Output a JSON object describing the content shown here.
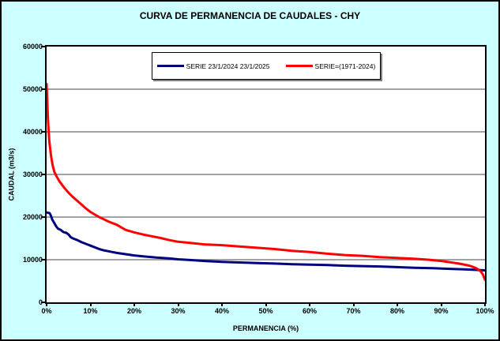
{
  "title": "CURVA DE PERMANENCIA DE CAUDALES - CHY",
  "colors": {
    "background": "#CCFFFF",
    "plot_background": "#FFFFFF",
    "gridline": "#848484",
    "series_blue": "#000080",
    "series_red": "#FF0000",
    "border": "#000000",
    "legend_shadow": "#808080"
  },
  "chart_data": {
    "type": "line",
    "title": "CURVA DE PERMANENCIA DE CAUDALES - CHY",
    "xlabel": "PERMANENCIA (%)",
    "ylabel": "CAUDAL (m3/s)",
    "xlim": [
      0,
      100
    ],
    "ylim": [
      0,
      60000
    ],
    "x_ticks": [
      "0%",
      "10%",
      "20%",
      "30%",
      "40%",
      "50%",
      "60%",
      "70%",
      "80%",
      "90%",
      "100%"
    ],
    "y_ticks": [
      0,
      10000,
      20000,
      30000,
      40000,
      50000,
      60000
    ],
    "grid": "horizontal",
    "legend_position": "top-center-inside",
    "series": [
      {
        "name": "SERIE 23/1/2024 23/1/2025",
        "color": "#000080",
        "points": [
          [
            0,
            21100
          ],
          [
            0.7,
            20900
          ],
          [
            1.0,
            20300
          ],
          [
            1.3,
            19400
          ],
          [
            1.7,
            18700
          ],
          [
            2.2,
            17800
          ],
          [
            2.6,
            17300
          ],
          [
            3.2,
            17000
          ],
          [
            3.8,
            16500
          ],
          [
            4.5,
            16300
          ],
          [
            5,
            15900
          ],
          [
            5.5,
            15300
          ],
          [
            6,
            15000
          ],
          [
            7,
            14600
          ],
          [
            8,
            14100
          ],
          [
            9,
            13700
          ],
          [
            10,
            13300
          ],
          [
            11,
            12900
          ],
          [
            12,
            12500
          ],
          [
            13,
            12200
          ],
          [
            14,
            12000
          ],
          [
            15,
            11800
          ],
          [
            16,
            11600
          ],
          [
            18,
            11300
          ],
          [
            20,
            11000
          ],
          [
            22,
            10800
          ],
          [
            25,
            10500
          ],
          [
            28,
            10300
          ],
          [
            30,
            10100
          ],
          [
            33,
            9900
          ],
          [
            36,
            9700
          ],
          [
            40,
            9500
          ],
          [
            44,
            9350
          ],
          [
            48,
            9200
          ],
          [
            52,
            9100
          ],
          [
            56,
            8950
          ],
          [
            60,
            8850
          ],
          [
            64,
            8750
          ],
          [
            68,
            8600
          ],
          [
            72,
            8500
          ],
          [
            76,
            8400
          ],
          [
            80,
            8250
          ],
          [
            84,
            8100
          ],
          [
            88,
            8000
          ],
          [
            92,
            7850
          ],
          [
            96,
            7700
          ],
          [
            100,
            7500
          ]
        ]
      },
      {
        "name": "SERIE=(1971-2024)",
        "color": "#FF0000",
        "points": [
          [
            0,
            51200
          ],
          [
            0.3,
            43000
          ],
          [
            0.6,
            38000
          ],
          [
            1,
            34500
          ],
          [
            1.4,
            32000
          ],
          [
            1.8,
            30500
          ],
          [
            2.3,
            29500
          ],
          [
            3,
            28300
          ],
          [
            4,
            26900
          ],
          [
            5,
            25700
          ],
          [
            6,
            24700
          ],
          [
            7,
            23800
          ],
          [
            8,
            22900
          ],
          [
            9,
            22000
          ],
          [
            10,
            21200
          ],
          [
            11,
            20600
          ],
          [
            12,
            20000
          ],
          [
            13,
            19500
          ],
          [
            14,
            19000
          ],
          [
            15,
            18600
          ],
          [
            16,
            18200
          ],
          [
            18,
            17000
          ],
          [
            20,
            16400
          ],
          [
            22,
            15900
          ],
          [
            24,
            15500
          ],
          [
            26,
            15100
          ],
          [
            28,
            14600
          ],
          [
            30,
            14200
          ],
          [
            33,
            13900
          ],
          [
            36,
            13600
          ],
          [
            40,
            13400
          ],
          [
            44,
            13100
          ],
          [
            48,
            12800
          ],
          [
            52,
            12500
          ],
          [
            56,
            12100
          ],
          [
            60,
            11800
          ],
          [
            64,
            11400
          ],
          [
            68,
            11100
          ],
          [
            72,
            10900
          ],
          [
            76,
            10600
          ],
          [
            80,
            10400
          ],
          [
            84,
            10200
          ],
          [
            87,
            10000
          ],
          [
            90,
            9700
          ],
          [
            92,
            9400
          ],
          [
            94,
            9100
          ],
          [
            96,
            8700
          ],
          [
            97,
            8400
          ],
          [
            98,
            8000
          ],
          [
            99,
            7300
          ],
          [
            99.5,
            6600
          ],
          [
            100,
            5300
          ]
        ]
      }
    ]
  }
}
